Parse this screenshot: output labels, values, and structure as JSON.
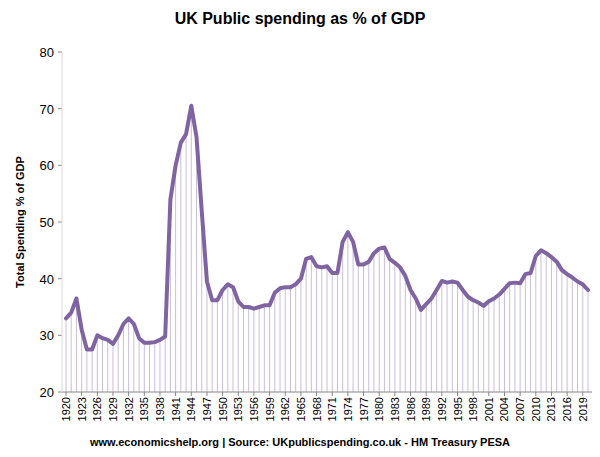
{
  "chart_data": {
    "type": "line",
    "title": "UK Public spending as % of GDP",
    "ylabel": "Total Spending % of GDP",
    "footer": "www.economicshelp.org | Source: UKpublicspending.co.uk - HM Treasury PESA",
    "color": "#8064a2",
    "x": [
      1920,
      1921,
      1922,
      1923,
      1924,
      1925,
      1926,
      1927,
      1928,
      1929,
      1930,
      1931,
      1932,
      1933,
      1934,
      1935,
      1936,
      1937,
      1938,
      1939,
      1940,
      1941,
      1942,
      1943,
      1944,
      1945,
      1946,
      1947,
      1948,
      1949,
      1950,
      1951,
      1952,
      1953,
      1954,
      1955,
      1956,
      1957,
      1958,
      1959,
      1960,
      1961,
      1962,
      1963,
      1964,
      1965,
      1966,
      1967,
      1968,
      1969,
      1970,
      1971,
      1972,
      1973,
      1974,
      1975,
      1976,
      1977,
      1978,
      1979,
      1980,
      1981,
      1982,
      1983,
      1984,
      1985,
      1986,
      1987,
      1988,
      1989,
      1990,
      1991,
      1992,
      1993,
      1994,
      1995,
      1996,
      1997,
      1998,
      1999,
      2000,
      2001,
      2002,
      2003,
      2004,
      2005,
      2006,
      2007,
      2008,
      2009,
      2010,
      2011,
      2012,
      2013,
      2014,
      2015,
      2016,
      2017,
      2018,
      2019,
      2020
    ],
    "values": [
      33,
      34,
      36.5,
      31,
      27.5,
      27.5,
      30,
      29.5,
      29.2,
      28.5,
      30,
      32,
      33,
      32,
      29.5,
      28.7,
      28.7,
      28.8,
      29.2,
      29.8,
      54,
      60,
      64,
      65.5,
      70.5,
      65,
      52,
      39.5,
      36.2,
      36.2,
      38,
      39,
      38.5,
      36,
      35,
      35,
      34.7,
      35,
      35.3,
      35.3,
      37.5,
      38.3,
      38.5,
      38.5,
      39,
      40,
      43.5,
      43.8,
      42.2,
      42,
      42.2,
      41,
      41,
      46.5,
      48.2,
      46.5,
      42.5,
      42.5,
      43,
      44.5,
      45.3,
      45.5,
      43.5,
      42.8,
      42,
      40.5,
      38,
      36.5,
      34.5,
      35.5,
      36.5,
      38,
      39.6,
      39.3,
      39.5,
      39.3,
      38,
      36.8,
      36.2,
      35.8,
      35.2,
      36,
      36.5,
      37.2,
      38.2,
      39.2,
      39.3,
      39.2,
      40.8,
      41,
      44,
      45,
      44.5,
      43.8,
      43,
      41.5,
      40.8,
      40.2,
      39.5,
      39,
      38
    ],
    "xlim": [
      1920,
      2020
    ],
    "xticks": [
      1920,
      1923,
      1926,
      1929,
      1932,
      1935,
      1938,
      1941,
      1944,
      1947,
      1950,
      1953,
      1956,
      1959,
      1962,
      1965,
      1968,
      1971,
      1974,
      1977,
      1980,
      1983,
      1986,
      1989,
      1992,
      1995,
      1998,
      2001,
      2004,
      2007,
      2010,
      2013,
      2016,
      2019
    ],
    "ylim": [
      20,
      80
    ],
    "yticks": [
      20,
      30,
      40,
      50,
      60,
      70,
      80
    ],
    "grid": false
  }
}
